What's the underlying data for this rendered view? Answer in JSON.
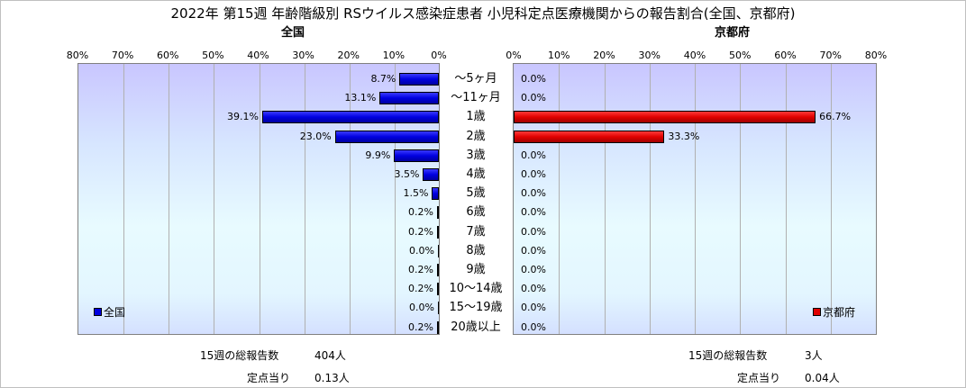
{
  "title": "2022年 第15週 年齢階級別 RSウイルス感染症患者 小児科定点医療機関からの報告割合(全国、京都府)",
  "subtitles": {
    "left": "全国",
    "right": "京都府"
  },
  "legend": {
    "left": "全国",
    "right": "京都府"
  },
  "colors": {
    "left": "#0000e0",
    "right": "#e00000"
  },
  "footer": {
    "left_total_label": "15週の総報告数",
    "left_total_value": "404人",
    "left_per_label": "定点当り",
    "left_per_value": "0.13人",
    "right_total_label": "15週の総報告数",
    "right_total_value": "3人",
    "right_per_label": "定点当り",
    "right_per_value": "0.04人"
  },
  "chart_data": {
    "type": "bar",
    "orientation": "horizontal",
    "title": "2022年 第15週 年齢階級別 RSウイルス感染症患者 小児科定点医療機関からの報告割合(全国、京都府)",
    "categories": [
      "～5ヶ月",
      "～11ヶ月",
      "1歳",
      "2歳",
      "3歳",
      "4歳",
      "5歳",
      "6歳",
      "7歳",
      "8歳",
      "9歳",
      "10～14歳",
      "15～19歳",
      "20歳以上"
    ],
    "xlim": [
      0,
      80
    ],
    "ticks": [
      "80%",
      "70%",
      "60%",
      "50%",
      "40%",
      "30%",
      "20%",
      "10%",
      "0%"
    ],
    "ticks_right": [
      "0%",
      "10%",
      "20%",
      "30%",
      "40%",
      "50%",
      "60%",
      "70%",
      "80%"
    ],
    "series": [
      {
        "name": "全国",
        "values": [
          8.7,
          13.1,
          39.1,
          23.0,
          9.9,
          3.5,
          1.5,
          0.2,
          0.2,
          0.0,
          0.2,
          0.2,
          0.0,
          0.2
        ],
        "labels": [
          "8.7%",
          "13.1%",
          "39.1%",
          "23.0%",
          "9.9%",
          "3.5%",
          "1.5%",
          "0.2%",
          "0.2%",
          "0.0%",
          "0.2%",
          "0.2%",
          "0.0%",
          "0.2%"
        ]
      },
      {
        "name": "京都府",
        "values": [
          0.0,
          0.0,
          66.7,
          33.3,
          0.0,
          0.0,
          0.0,
          0.0,
          0.0,
          0.0,
          0.0,
          0.0,
          0.0,
          0.0
        ],
        "labels": [
          "0.0%",
          "0.0%",
          "66.7%",
          "33.3%",
          "0.0%",
          "0.0%",
          "0.0%",
          "0.0%",
          "0.0%",
          "0.0%",
          "0.0%",
          "0.0%",
          "0.0%",
          "0.0%"
        ]
      }
    ],
    "legend_position": "bottom-left / bottom-right",
    "grid": true
  }
}
